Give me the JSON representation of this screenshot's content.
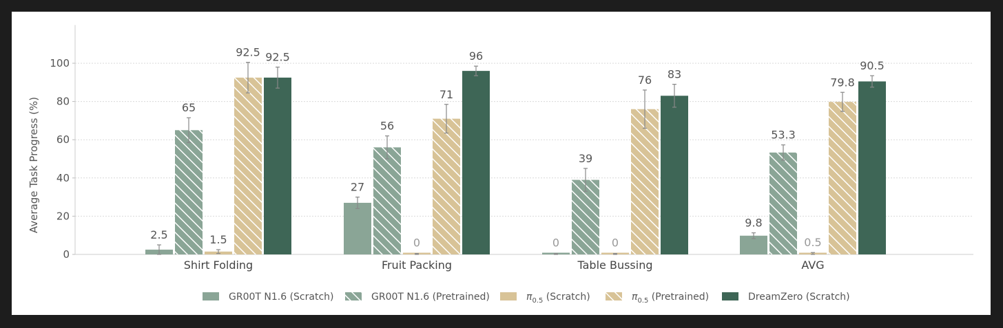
{
  "chart_data": {
    "type": "bar",
    "title": "",
    "xlabel": "",
    "ylabel": "Average Task Progress (%)",
    "ylim": [
      0,
      120
    ],
    "yticks": [
      0,
      20,
      40,
      60,
      80,
      100
    ],
    "grid": true,
    "legend_position": "bottom",
    "categories": [
      "Shirt Folding",
      "Fruit Packing",
      "Table Bussing",
      "AVG"
    ],
    "series": [
      {
        "name": "GR00T N1.6 (Scratch)",
        "legend_main": "GR00T N1.6 (Scratch)",
        "legend_sub": "",
        "legend_tail": "",
        "color": "#8aa596",
        "hatch": false,
        "values": [
          2.5,
          27,
          0,
          9.8
        ],
        "errors": [
          2.5,
          3,
          0.5,
          1.5
        ],
        "labels": [
          "2.5",
          "27",
          "0",
          "9.8"
        ],
        "muted": [
          false,
          false,
          true,
          false
        ]
      },
      {
        "name": "GR00T N1.6 (Pretrained)",
        "legend_main": "GR00T N1.6 (Pretrained)",
        "legend_sub": "",
        "legend_tail": "",
        "color": "#8aa596",
        "hatch": true,
        "values": [
          65,
          56,
          39,
          53.3
        ],
        "errors": [
          6.5,
          6,
          6,
          4
        ],
        "labels": [
          "65",
          "56",
          "39",
          "53.3"
        ],
        "muted": [
          false,
          false,
          false,
          false
        ]
      },
      {
        "name": "π0.5 (Scratch)",
        "legend_main": "π",
        "legend_sub": "0.5",
        "legend_tail": " (Scratch)",
        "color": "#d8c397",
        "hatch": false,
        "values": [
          1.5,
          0,
          0,
          0.5
        ],
        "errors": [
          1,
          0.5,
          0.5,
          0.5
        ],
        "labels": [
          "1.5",
          "0",
          "0",
          "0.5"
        ],
        "muted": [
          false,
          true,
          true,
          true
        ]
      },
      {
        "name": "π0.5 (Pretrained)",
        "legend_main": "π",
        "legend_sub": "0.5",
        "legend_tail": " (Pretrained)",
        "color": "#d8c397",
        "hatch": true,
        "values": [
          92.5,
          71,
          76,
          79.8
        ],
        "errors": [
          8,
          7.5,
          10,
          5
        ],
        "labels": [
          "92.5",
          "71",
          "76",
          "79.8"
        ],
        "muted": [
          false,
          false,
          false,
          false
        ]
      },
      {
        "name": "DreamZero (Scratch)",
        "legend_main": "DreamZero (Scratch)",
        "legend_sub": "",
        "legend_tail": "",
        "color": "#3e6656",
        "hatch": false,
        "values": [
          92.5,
          96,
          83,
          90.5
        ],
        "errors": [
          5.5,
          2.5,
          6,
          3
        ],
        "labels": [
          "92.5",
          "96",
          "83",
          "90.5"
        ],
        "muted": [
          false,
          false,
          false,
          false
        ]
      }
    ]
  }
}
